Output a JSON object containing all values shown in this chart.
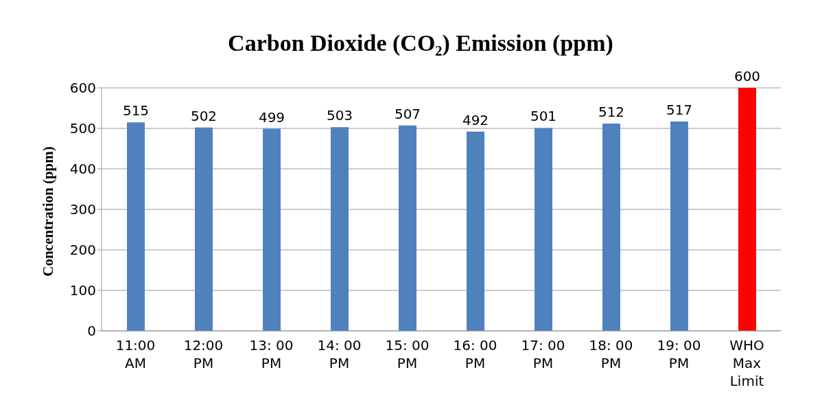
{
  "chart_data": {
    "type": "bar",
    "title": "Carbon Dioxide (CO₂) Emission (ppm)",
    "ylabel": "Concentration (ppm)",
    "categories": [
      "11:00\nAM",
      "12:00\nPM",
      "13: 00\nPM",
      "14: 00\nPM",
      "15: 00\nPM",
      "16: 00\nPM",
      "17: 00\nPM",
      "18: 00\nPM",
      "19: 00\nPM",
      "WHO\nMax\nLimit"
    ],
    "values": [
      515,
      502,
      499,
      503,
      507,
      492,
      501,
      512,
      517,
      600
    ],
    "colors": [
      "#4f81bd",
      "#4f81bd",
      "#4f81bd",
      "#4f81bd",
      "#4f81bd",
      "#4f81bd",
      "#4f81bd",
      "#4f81bd",
      "#4f81bd",
      "#ff0000"
    ],
    "ylim": [
      0,
      600
    ],
    "yticks": [
      0,
      100,
      200,
      300,
      400,
      500,
      600
    ],
    "grid": "y",
    "data_labels": true
  }
}
